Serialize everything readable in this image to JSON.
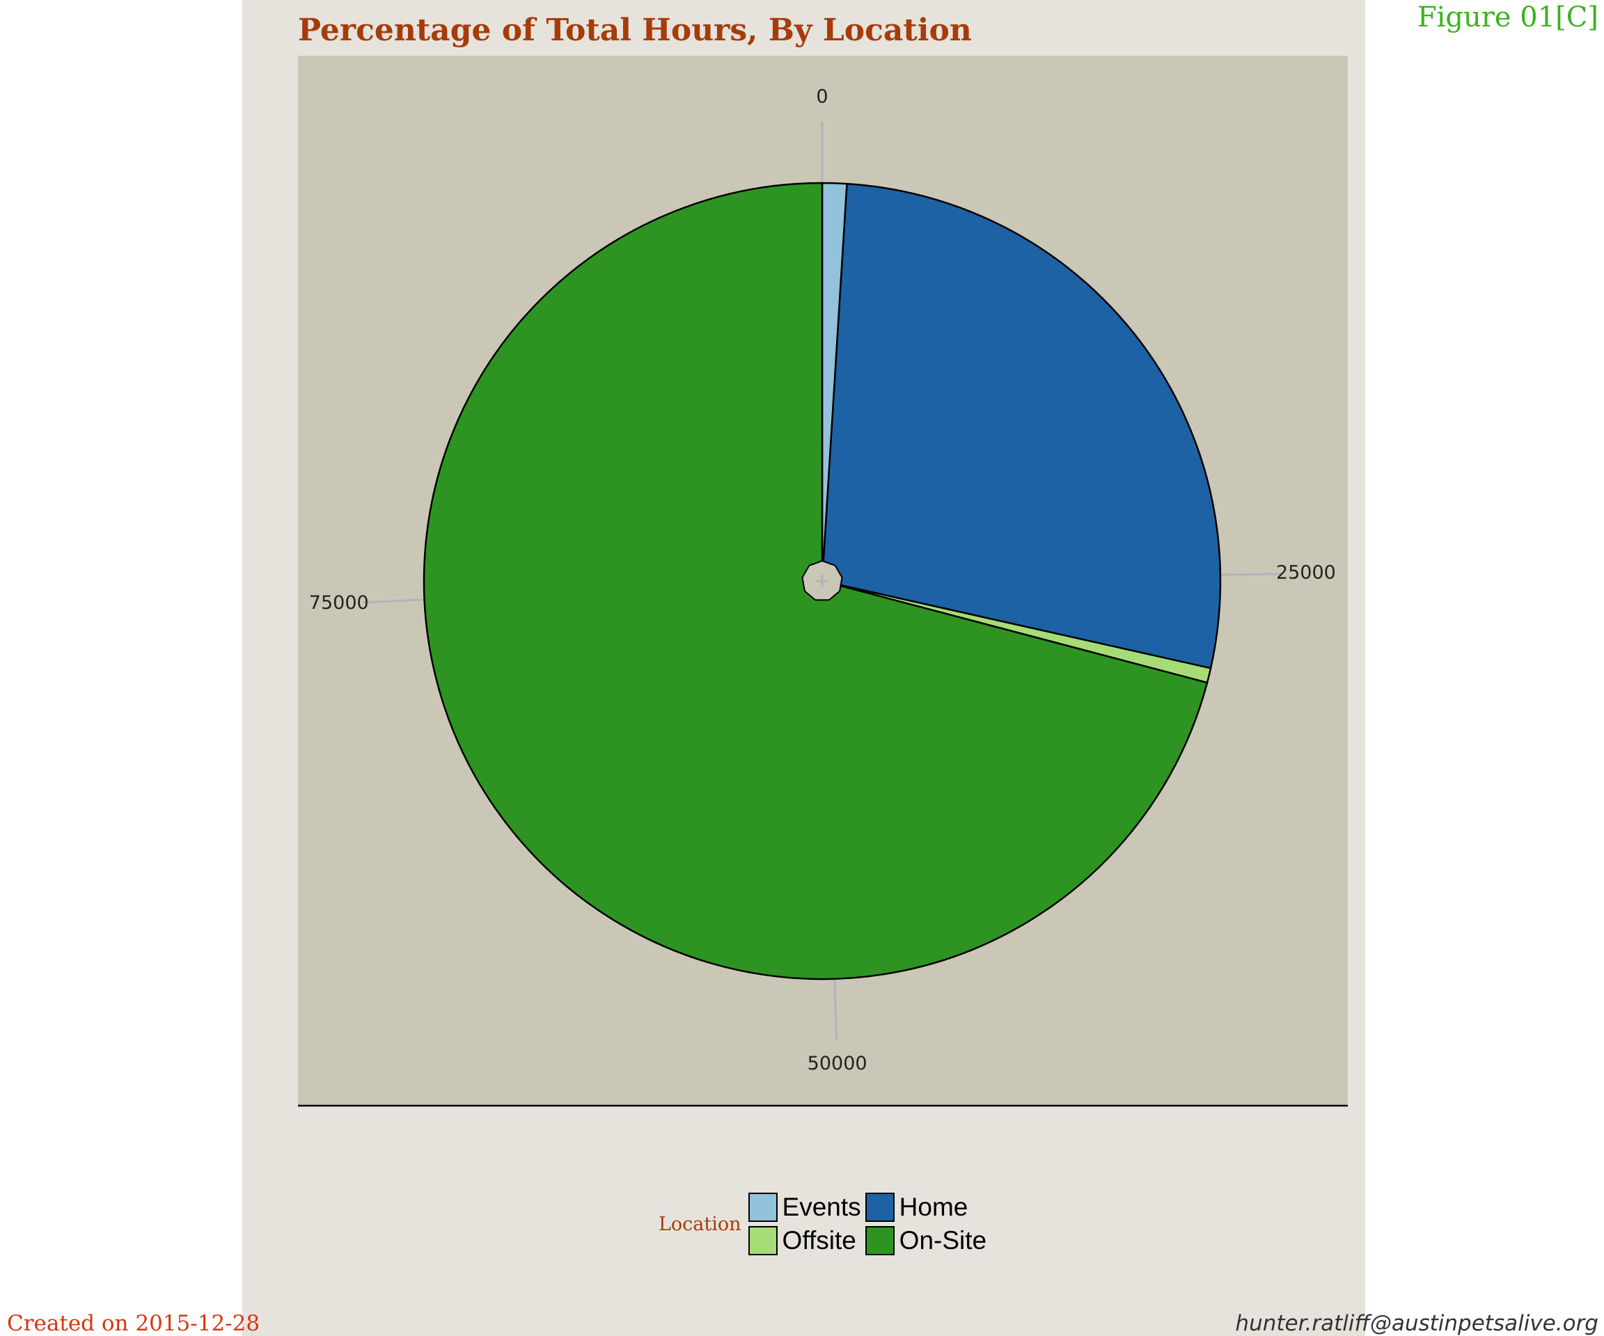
{
  "figure_label": "Figure 01[C]",
  "footer": {
    "created": "Created on 2015-12-28",
    "email": "hunter.ratliff@austinpetsalive.org"
  },
  "colors": {
    "title": "#a63c0a",
    "figure_label": "#3cb21e",
    "created": "#d9350f",
    "panel_background": "#e6e3dc",
    "plot_background": "#cbc7b6"
  },
  "chart_data": {
    "type": "pie",
    "title": "Percentage of Total Hours, By Location",
    "legend_title": "Location",
    "legend_position": "bottom",
    "axis_ticks": [
      "0",
      "25000",
      "50000",
      "75000"
    ],
    "axis_tick_values": [
      0,
      25000,
      50000,
      75000
    ],
    "total": 101000,
    "slices": [
      {
        "name": "Events",
        "value": 1000,
        "color": "#93c2dc"
      },
      {
        "name": "Home",
        "value": 27800,
        "color": "#1d62a5"
      },
      {
        "name": "Offsite",
        "value": 600,
        "color": "#a6dc75"
      },
      {
        "name": "On-Site",
        "value": 71600,
        "color": "#2e9421"
      }
    ]
  }
}
